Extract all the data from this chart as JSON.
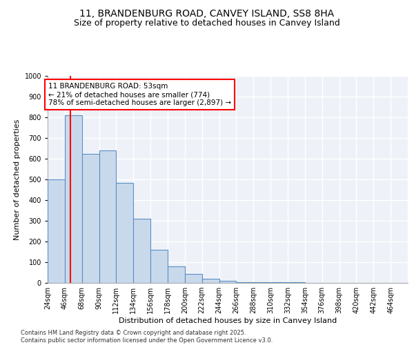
{
  "title1": "11, BRANDENBURG ROAD, CANVEY ISLAND, SS8 8HA",
  "title2": "Size of property relative to detached houses in Canvey Island",
  "xlabel": "Distribution of detached houses by size in Canvey Island",
  "ylabel": "Number of detached properties",
  "bar_values": [
    500,
    810,
    625,
    640,
    485,
    310,
    160,
    80,
    45,
    20,
    10,
    5,
    2,
    2,
    2,
    1,
    1,
    0,
    0,
    0,
    0
  ],
  "bin_edges": [
    24,
    46,
    68,
    90,
    112,
    134,
    156,
    178,
    200,
    222,
    244,
    266,
    288,
    310,
    332,
    354,
    376,
    398,
    420,
    442,
    464
  ],
  "x_labels": [
    "24sqm",
    "46sqm",
    "68sqm",
    "90sqm",
    "112sqm",
    "134sqm",
    "156sqm",
    "178sqm",
    "200sqm",
    "222sqm",
    "244sqm",
    "266sqm",
    "288sqm",
    "310sqm",
    "332sqm",
    "354sqm",
    "376sqm",
    "398sqm",
    "420sqm",
    "442sqm",
    "464sqm"
  ],
  "bar_color": "#c9d9ec",
  "bar_edge_color": "#5b8fc4",
  "vline_x": 53,
  "vline_color": "red",
  "annotation_text": "11 BRANDENBURG ROAD: 53sqm\n← 21% of detached houses are smaller (774)\n78% of semi-detached houses are larger (2,897) →",
  "ylim": [
    0,
    1000
  ],
  "yticks": [
    0,
    100,
    200,
    300,
    400,
    500,
    600,
    700,
    800,
    900,
    1000
  ],
  "bg_color": "#eef2f8",
  "footer": "Contains HM Land Registry data © Crown copyright and database right 2025.\nContains public sector information licensed under the Open Government Licence v3.0.",
  "grid_color": "#ffffff",
  "title_fontsize": 10,
  "subtitle_fontsize": 9,
  "label_fontsize": 8,
  "tick_fontsize": 7,
  "annotation_fontsize": 7.5
}
